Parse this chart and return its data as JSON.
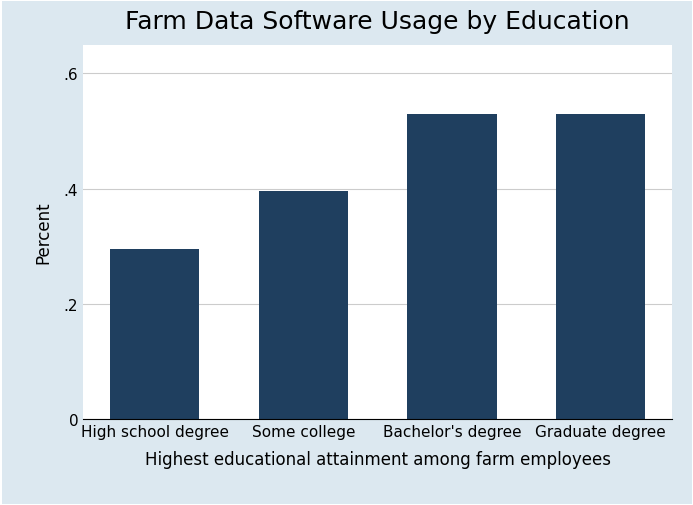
{
  "title": "Farm Data Software Usage by Education",
  "xlabel": "Highest educational attainment among farm employees",
  "ylabel": "Percent",
  "categories": [
    "High school degree",
    "Some college",
    "Bachelor's degree",
    "Graduate degree"
  ],
  "values": [
    0.295,
    0.395,
    0.53,
    0.53
  ],
  "bar_color": "#1f3f5f",
  "background_color": "#dce8f0",
  "plot_background_color": "#ffffff",
  "ylim": [
    0,
    0.65
  ],
  "yticks": [
    0,
    0.2,
    0.4,
    0.6
  ],
  "ytick_labels": [
    "0",
    ".2",
    ".4",
    ".6"
  ],
  "title_fontsize": 18,
  "label_fontsize": 12,
  "tick_fontsize": 11,
  "bar_width": 0.6
}
